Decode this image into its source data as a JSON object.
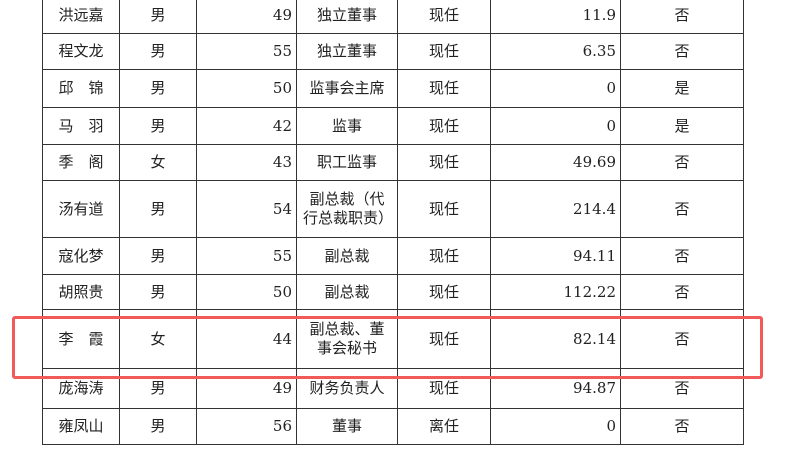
{
  "rows": [
    {
      "name": "洪远嘉",
      "gender": "男",
      "age": "49",
      "title": "独立董事",
      "status": "现任",
      "pay": "11.9",
      "related": "否"
    },
    {
      "name": "程文龙",
      "gender": "男",
      "age": "55",
      "title": "独立董事",
      "status": "现任",
      "pay": "6.35",
      "related": "否"
    },
    {
      "name": "邱　锦",
      "gender": "男",
      "age": "50",
      "title": "监事会主席",
      "status": "现任",
      "pay": "0",
      "related": "是"
    },
    {
      "name": "马　羽",
      "gender": "男",
      "age": "42",
      "title": "监事",
      "status": "现任",
      "pay": "0",
      "related": "是"
    },
    {
      "name": "季　阁",
      "gender": "女",
      "age": "43",
      "title": "职工监事",
      "status": "现任",
      "pay": "49.69",
      "related": "否"
    },
    {
      "name": "汤有道",
      "gender": "男",
      "age": "54",
      "title": "副总裁（代行总裁职责）",
      "status": "现任",
      "pay": "214.4",
      "related": "否"
    },
    {
      "name": "寇化梦",
      "gender": "男",
      "age": "55",
      "title": "副总裁",
      "status": "现任",
      "pay": "94.11",
      "related": "否"
    },
    {
      "name": "胡照贵",
      "gender": "男",
      "age": "50",
      "title": "副总裁",
      "status": "现任",
      "pay": "112.22",
      "related": "否"
    },
    {
      "name": "李　霞",
      "gender": "女",
      "age": "44",
      "title": "副总裁、董事会秘书",
      "status": "现任",
      "pay": "82.14",
      "related": "否"
    },
    {
      "name": "庞海涛",
      "gender": "男",
      "age": "49",
      "title": "财务负责人",
      "status": "现任",
      "pay": "94.87",
      "related": "否"
    },
    {
      "name": "雍凤山",
      "gender": "男",
      "age": "56",
      "title": "董事",
      "status": "离任",
      "pay": "0",
      "related": "否"
    }
  ],
  "highlight_color": "#f25a5a"
}
